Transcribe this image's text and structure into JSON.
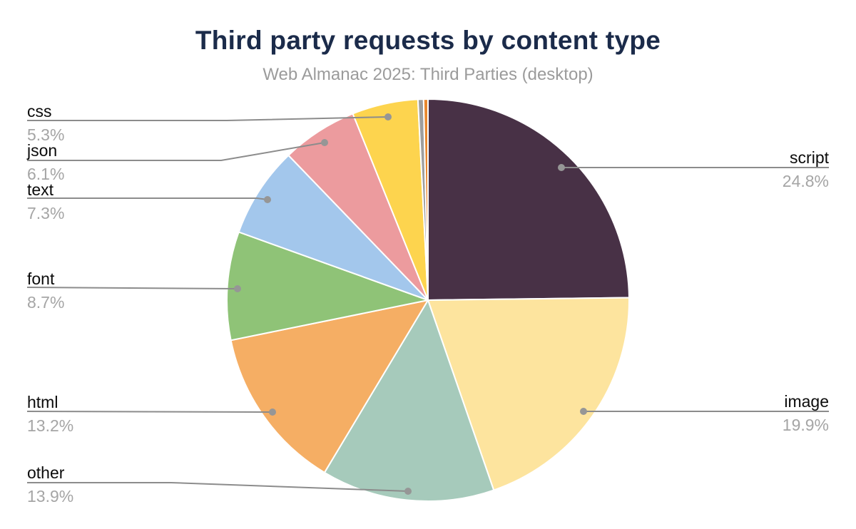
{
  "page": {
    "background": "#ffffff"
  },
  "colors": {
    "title": "#1b2b4a",
    "subtitle": "#9b9b9b",
    "slice_label": "#0b0b0b",
    "slice_percentage": "#a5a5a5",
    "leader_line": "#8c8c8c",
    "leader_dot": "#969696",
    "slice_border": "#ffffff"
  },
  "chart_data": {
    "type": "pie",
    "title": "Third party requests by content type",
    "subtitle": "Web Almanac 2025: Third Parties (desktop)",
    "unit": "percent",
    "direction": "clockwise",
    "start_angle": "12 o'clock",
    "legend_position": "callout labels with leader lines",
    "slices": [
      {
        "label": "script",
        "value": 24.8,
        "pct_text": "24.8%",
        "color": "#483146"
      },
      {
        "label": "image",
        "value": 19.9,
        "pct_text": "19.9%",
        "color": "#FDE49E"
      },
      {
        "label": "other",
        "value": 13.9,
        "pct_text": "13.9%",
        "color": "#A6CABB"
      },
      {
        "label": "html",
        "value": 13.2,
        "pct_text": "13.2%",
        "color": "#F5AE64"
      },
      {
        "label": "font",
        "value": 8.7,
        "pct_text": "8.7%",
        "color": "#8FC377"
      },
      {
        "label": "text",
        "value": 7.3,
        "pct_text": "7.3%",
        "color": "#A3C7EC"
      },
      {
        "label": "json",
        "value": 6.1,
        "pct_text": "6.1%",
        "color": "#EC9B9E"
      },
      {
        "label": "css",
        "value": 5.3,
        "pct_text": "5.3%",
        "color": "#FDD44E"
      },
      {
        "label": "",
        "value": 0.45,
        "pct_text": "",
        "color": "#9E9E9E"
      },
      {
        "label": "",
        "value": 0.35,
        "pct_text": "",
        "color": "#E8882F"
      }
    ]
  }
}
